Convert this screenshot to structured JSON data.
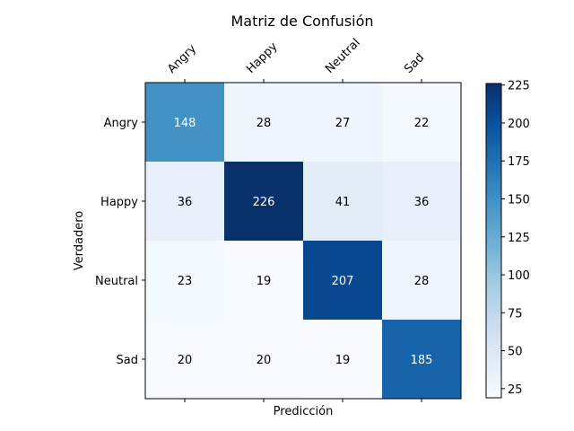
{
  "chart_data": {
    "type": "heatmap",
    "title": "Matriz de Confusión",
    "xlabel": "Predicción",
    "ylabel": "Verdadero",
    "x_categories": [
      "Angry",
      "Happy",
      "Neutral",
      "Sad"
    ],
    "y_categories": [
      "Angry",
      "Happy",
      "Neutral",
      "Sad"
    ],
    "values": [
      [
        148,
        28,
        27,
        22
      ],
      [
        36,
        226,
        41,
        36
      ],
      [
        23,
        19,
        207,
        28
      ],
      [
        20,
        20,
        19,
        185
      ]
    ],
    "colorbar": {
      "min": 19,
      "max": 226,
      "ticks": [
        25,
        50,
        75,
        100,
        125,
        150,
        175,
        200,
        225
      ],
      "colormap": "Blues"
    },
    "grid": false
  }
}
